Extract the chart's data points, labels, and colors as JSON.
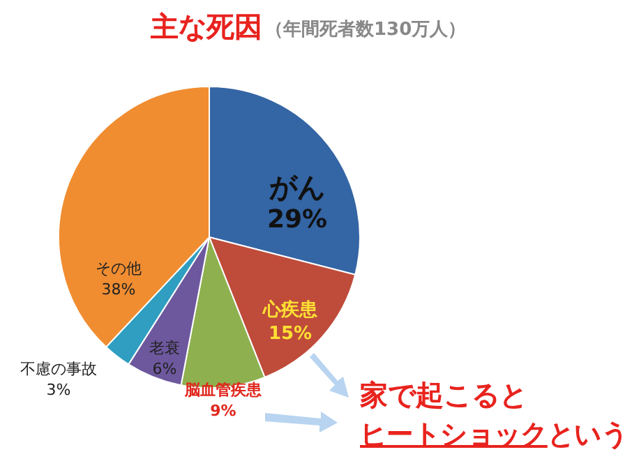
{
  "chart_data": {
    "type": "pie",
    "title": "主な死因",
    "subtitle": "（年間死者数130万人）",
    "categories": [
      "がん",
      "心疾患",
      "脳血管疾患",
      "老衰",
      "不慮の事故",
      "その他"
    ],
    "values": [
      29,
      15,
      9,
      6,
      3,
      38
    ],
    "colors": [
      "#3465a4",
      "#bf4b3b",
      "#8fb04f",
      "#6d589e",
      "#2f9ec0",
      "#f08d31"
    ],
    "value_labels": [
      "29%",
      "15%",
      "9%",
      "6%",
      "3%",
      "38%"
    ],
    "annotations": [
      "家で起こると",
      "ヒートショックという"
    ]
  }
}
